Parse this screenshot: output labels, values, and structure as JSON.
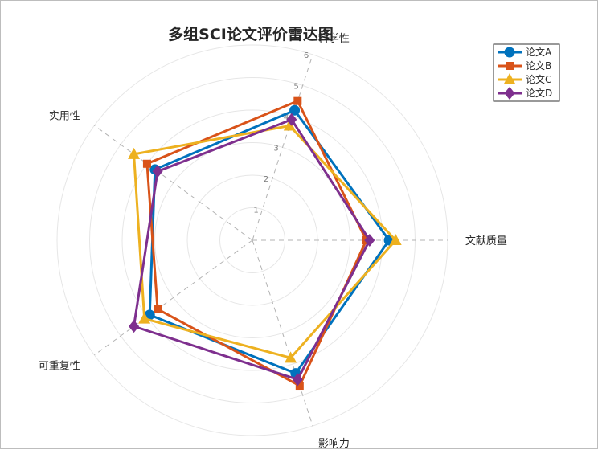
{
  "chart_data": {
    "type": "radar",
    "title": "多组SCI论文评价雷达图",
    "axes": [
      "科学性",
      "文献质量",
      "影响力",
      "可重复性",
      "实用性"
    ],
    "radial_ticks": [
      "1",
      "2",
      "3",
      "4",
      "5",
      "6"
    ],
    "rlim": [
      0,
      6
    ],
    "grid": true,
    "legend_position": "top-right",
    "series": [
      {
        "name": "论文A",
        "color": "#0072BD",
        "marker": "circle",
        "values": [
          4.2,
          4.2,
          4.3,
          3.9,
          3.7
        ]
      },
      {
        "name": "论文B",
        "color": "#D95319",
        "marker": "square",
        "values": [
          4.5,
          3.5,
          4.7,
          3.6,
          4.0
        ]
      },
      {
        "name": "论文C",
        "color": "#EDB120",
        "marker": "triangle",
        "values": [
          3.7,
          4.4,
          3.8,
          4.1,
          4.5
        ]
      },
      {
        "name": "论文D",
        "color": "#7E2F8E",
        "marker": "diamond",
        "values": [
          3.9,
          3.6,
          4.5,
          4.5,
          3.6
        ]
      }
    ]
  }
}
